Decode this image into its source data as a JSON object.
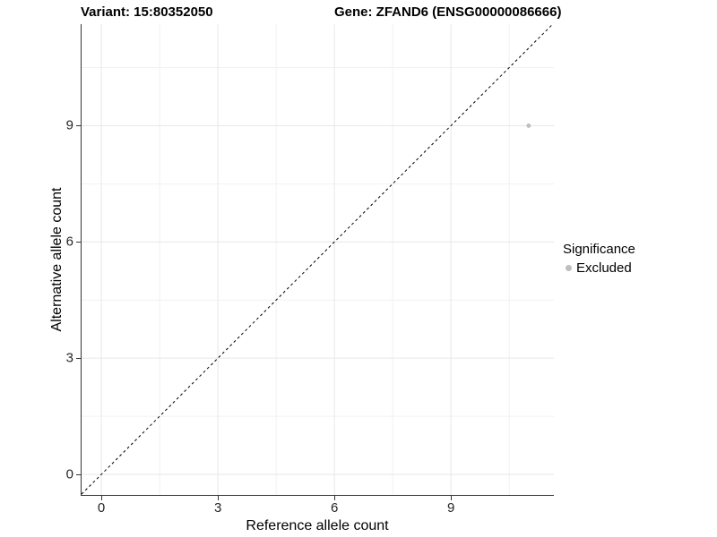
{
  "chart_data": {
    "type": "scatter",
    "titles": {
      "left": "Variant: 15:80352050",
      "right": "Gene: ZFAND6 (ENSG00000086666)"
    },
    "xlabel": "Reference allele count",
    "ylabel": "Alternative allele count",
    "x_ticks": [
      0,
      3,
      6,
      9
    ],
    "y_ticks": [
      0,
      3,
      6,
      9
    ],
    "x_minor_gridlines": [
      1.5,
      4.5,
      7.5,
      10.5
    ],
    "y_minor_gridlines": [
      1.5,
      4.5,
      7.5,
      10.5
    ],
    "xlim": [
      -0.51,
      11.65
    ],
    "ylim": [
      -0.53,
      11.62
    ],
    "grid": true,
    "points": [
      {
        "x": 11,
        "y": 9,
        "significance": "Excluded"
      }
    ],
    "identity_line": {
      "equation": "y = x",
      "style": "dashed",
      "color": "#000000"
    },
    "legend": {
      "position": "right",
      "title": "Significance",
      "items": [
        {
          "label": "Excluded",
          "color": "#bebebe"
        }
      ]
    },
    "colors": {
      "point": "#bebebe",
      "grid_major": "#e7e7e7",
      "grid_minor": "#f1f1f1",
      "axis_line": "#333333",
      "tick_text": "#262626",
      "title_text": "#000000",
      "background": "#ffffff"
    }
  }
}
